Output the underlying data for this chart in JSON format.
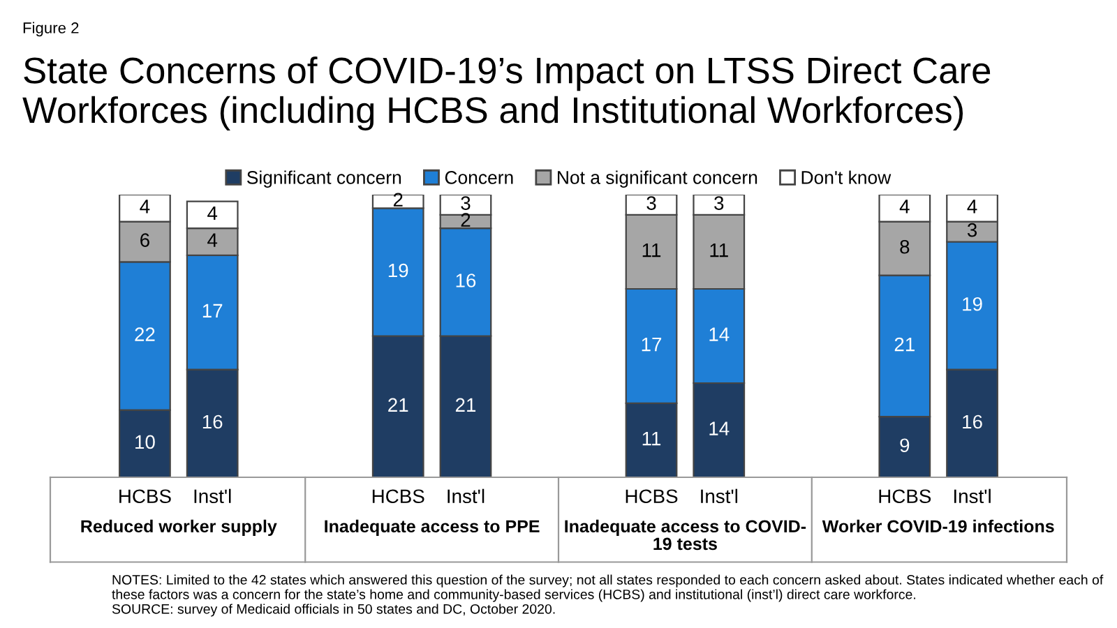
{
  "chart_data": {
    "type": "bar",
    "stacked": true,
    "title": "State Concerns of COVID-19’s Impact on LTSS Direct Care Workforces (including HCBS and Institutional Workforces)",
    "categories": [
      "HCBS",
      "Inst'l",
      "HCBS",
      "Inst'l",
      "HCBS",
      "Inst'l",
      "HCBS",
      "Inst'l"
    ],
    "series": [
      {
        "name": "Significant concern",
        "color": "#1f3d63",
        "values": [
          10,
          16,
          21,
          21,
          11,
          14,
          9,
          16
        ],
        "value_labels": [
          "10",
          "16",
          "21",
          "21",
          "11",
          "14",
          "9",
          "16"
        ]
      },
      {
        "name": "Concern",
        "color": "#1f7fd6",
        "values": [
          22,
          17,
          19,
          16,
          17,
          14,
          21,
          19
        ],
        "value_labels": [
          "22",
          "17",
          "19",
          "16",
          "17",
          "14",
          "21",
          "19"
        ]
      },
      {
        "name": "Not a significant concern",
        "color": "#a6a6a6",
        "values": [
          6,
          4,
          0,
          2,
          11,
          11,
          8,
          3
        ],
        "value_labels": [
          "6",
          "4",
          null,
          "2",
          "11",
          "11",
          "8",
          "3"
        ]
      },
      {
        "name": "Don't know",
        "color": "#ffffff",
        "values": [
          4,
          4,
          2,
          3,
          3,
          3,
          4,
          4
        ],
        "value_labels": [
          "4",
          "4",
          "2",
          "3",
          "3",
          "3",
          "4",
          "4"
        ]
      }
    ],
    "legend": "top",
    "annotations": [
      "Figure 2",
      "Reduced worker supply",
      "Inadequate access to PPE",
      "Inadequate access to COVID-\n19 tests",
      "Worker COVID-19 infections",
      "NOTES: Limited to the 42 states which answered this question of the survey; not all states responded to each concern asked about. States indicated whether each of these factors was a concern for the state’s home and community-based services (HCBS) and institutional (inst’l) direct care workforce.\nSOURCE: survey of Medicaid officials in 50 states and DC, October 2020."
    ]
  }
}
